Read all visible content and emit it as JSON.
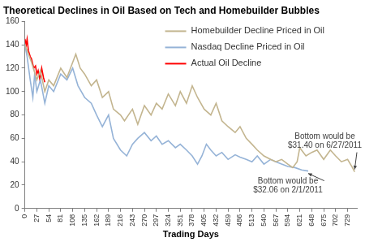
{
  "chart_data": {
    "type": "line",
    "title": "Theoretical Declines in Oil Based on Tech and Homebuilder Bubbles",
    "x_label": "Trading Days",
    "xlim": [
      0,
      750
    ],
    "xticks": [
      0,
      27,
      54,
      81,
      108,
      135,
      162,
      189,
      216,
      243,
      270,
      297,
      324,
      351,
      378,
      405,
      432,
      459,
      486,
      513,
      540,
      567,
      594,
      621,
      648,
      675,
      702,
      729
    ],
    "ylim": [
      0,
      160
    ],
    "yticks": [
      0,
      20,
      40,
      60,
      80,
      100,
      120,
      140,
      160
    ],
    "grid": false,
    "legend": "upper right",
    "series": [
      {
        "name": "Homebuilder Decline Priced in Oil",
        "color": "#c3b58f",
        "x": [
          0,
          5,
          15,
          27,
          35,
          45,
          54,
          65,
          81,
          95,
          108,
          115,
          125,
          135,
          150,
          162,
          175,
          189,
          200,
          216,
          225,
          243,
          255,
          270,
          285,
          297,
          310,
          324,
          340,
          351,
          365,
          378,
          390,
          405,
          420,
          432,
          445,
          459,
          475,
          486,
          500,
          513,
          525,
          540,
          555,
          567,
          580,
          594,
          605,
          615,
          621,
          635,
          648,
          660,
          675,
          690,
          702,
          715,
          729,
          740,
          745
        ],
        "values": [
          140,
          135,
          125,
          110,
          118,
          100,
          110,
          105,
          120,
          112,
          125,
          132,
          120,
          115,
          105,
          110,
          95,
          100,
          85,
          80,
          75,
          85,
          72,
          88,
          80,
          90,
          85,
          98,
          88,
          100,
          90,
          105,
          95,
          85,
          80,
          90,
          75,
          70,
          65,
          70,
          60,
          55,
          50,
          45,
          42,
          40,
          42,
          38,
          35,
          40,
          52,
          45,
          48,
          50,
          42,
          50,
          45,
          40,
          42,
          35,
          31.4
        ]
      },
      {
        "name": "Nasdaq Decline Priced in Oil",
        "color": "#95b3d7",
        "x": [
          0,
          5,
          12,
          18,
          22,
          27,
          35,
          45,
          54,
          65,
          81,
          95,
          108,
          120,
          135,
          150,
          162,
          175,
          189,
          200,
          216,
          230,
          243,
          255,
          270,
          285,
          297,
          310,
          324,
          340,
          351,
          365,
          378,
          390,
          400,
          410,
          420,
          432,
          445,
          459,
          475,
          486,
          500,
          513,
          525,
          540,
          555,
          567,
          580,
          594,
          610,
          625,
          640
        ],
        "values": [
          140,
          130,
          110,
          95,
          115,
          100,
          110,
          90,
          105,
          100,
          115,
          110,
          120,
          105,
          95,
          90,
          80,
          70,
          80,
          60,
          50,
          45,
          55,
          60,
          65,
          58,
          62,
          55,
          58,
          52,
          55,
          50,
          45,
          38,
          45,
          55,
          50,
          45,
          48,
          42,
          46,
          44,
          42,
          40,
          45,
          38,
          42,
          40,
          38,
          36,
          35,
          33,
          32.06
        ]
      },
      {
        "name": "Actual Oil Decline",
        "color": "#ff0000",
        "x": [
          0,
          3,
          5,
          8,
          12,
          15,
          20,
          24,
          27,
          30,
          34,
          38,
          42,
          45
        ],
        "values": [
          145,
          140,
          145,
          135,
          130,
          128,
          120,
          122,
          115,
          118,
          110,
          120,
          112,
          108
        ]
      }
    ],
    "annotations": [
      {
        "series": "Homebuilder Decline Priced in Oil",
        "text": [
          "Bottom would be",
          "$31.40 on 6/27/2011"
        ]
      },
      {
        "series": "Nasdaq Decline Priced in Oil",
        "text": [
          "Bottom would be",
          "$32.06 on 2/1/2011"
        ]
      }
    ]
  }
}
